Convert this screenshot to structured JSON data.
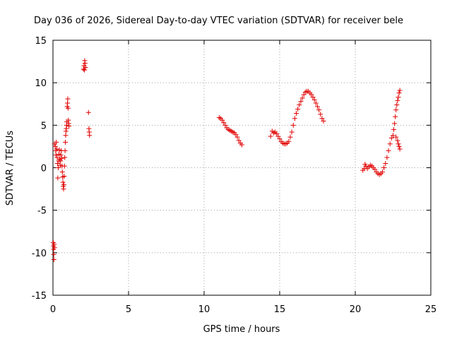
{
  "chart_data": {
    "type": "scatter",
    "title": "Day 036 of 2026, Sidereal Day-to-day VTEC variation (SDTVAR) for receiver bele",
    "xlabel": "GPS time / hours",
    "ylabel": "SDTVAR / TECUs",
    "xlim": [
      0,
      25
    ],
    "ylim": [
      -15,
      15
    ],
    "xticks": [
      0,
      5,
      10,
      15,
      20,
      25
    ],
    "yticks": [
      -15,
      -10,
      -5,
      0,
      5,
      10,
      15
    ],
    "grid": true,
    "marker": "+",
    "color": "#e00000",
    "series": [
      {
        "name": "SDTVAR",
        "points": [
          [
            0.02,
            -8.8
          ],
          [
            0.03,
            -9.2
          ],
          [
            0.04,
            -9.6
          ],
          [
            0.05,
            -10.2
          ],
          [
            0.06,
            -10.8
          ],
          [
            0.08,
            -9.0
          ],
          [
            0.1,
            -9.4
          ],
          [
            0.1,
            2.8
          ],
          [
            0.15,
            2.5
          ],
          [
            0.18,
            2.0
          ],
          [
            0.2,
            1.5
          ],
          [
            0.22,
            3.0
          ],
          [
            0.25,
            2.2
          ],
          [
            0.28,
            1.2
          ],
          [
            0.3,
            0.5
          ],
          [
            0.32,
            -1.2
          ],
          [
            0.35,
            0.0
          ],
          [
            0.38,
            0.8
          ],
          [
            0.4,
            1.6
          ],
          [
            0.42,
            2.1
          ],
          [
            0.45,
            1.0
          ],
          [
            0.48,
            0.3
          ],
          [
            0.5,
            0.8
          ],
          [
            0.52,
            1.5
          ],
          [
            0.55,
            2.0
          ],
          [
            0.58,
            1.1
          ],
          [
            0.6,
            0.2
          ],
          [
            0.62,
            -0.5
          ],
          [
            0.64,
            -1.1
          ],
          [
            0.66,
            -1.7
          ],
          [
            0.68,
            -2.2
          ],
          [
            0.7,
            -2.5
          ],
          [
            0.72,
            -2.0
          ],
          [
            0.74,
            -1.0
          ],
          [
            0.76,
            0.2
          ],
          [
            0.78,
            1.2
          ],
          [
            0.8,
            2.0
          ],
          [
            0.82,
            3.0
          ],
          [
            0.84,
            3.8
          ],
          [
            0.86,
            4.3
          ],
          [
            0.88,
            4.6
          ],
          [
            0.9,
            5.0
          ],
          [
            0.92,
            5.4
          ],
          [
            0.94,
            7.2
          ],
          [
            0.96,
            7.6
          ],
          [
            0.98,
            8.1
          ],
          [
            1.0,
            7.0
          ],
          [
            1.02,
            5.6
          ],
          [
            1.04,
            5.2
          ],
          [
            1.06,
            4.9
          ],
          [
            2.02,
            11.6
          ],
          [
            2.05,
            12.0
          ],
          [
            2.08,
            11.5
          ],
          [
            2.1,
            12.6
          ],
          [
            2.12,
            12.3
          ],
          [
            2.15,
            11.8
          ],
          [
            2.35,
            6.5
          ],
          [
            2.38,
            4.6
          ],
          [
            2.4,
            4.2
          ],
          [
            2.42,
            3.8
          ],
          [
            11.0,
            5.9
          ],
          [
            11.1,
            5.8
          ],
          [
            11.2,
            5.6
          ],
          [
            11.3,
            5.3
          ],
          [
            11.4,
            5.0
          ],
          [
            11.5,
            4.7
          ],
          [
            11.6,
            4.5
          ],
          [
            11.7,
            4.4
          ],
          [
            11.8,
            4.3
          ],
          [
            11.9,
            4.2
          ],
          [
            12.0,
            4.1
          ],
          [
            12.1,
            3.9
          ],
          [
            12.2,
            3.6
          ],
          [
            12.3,
            3.2
          ],
          [
            12.4,
            2.9
          ],
          [
            12.5,
            2.7
          ],
          [
            14.4,
            3.7
          ],
          [
            14.5,
            4.3
          ],
          [
            14.6,
            4.1
          ],
          [
            14.7,
            4.2
          ],
          [
            14.8,
            4.0
          ],
          [
            14.9,
            3.7
          ],
          [
            15.0,
            3.4
          ],
          [
            15.1,
            3.1
          ],
          [
            15.2,
            2.9
          ],
          [
            15.3,
            2.8
          ],
          [
            15.4,
            2.8
          ],
          [
            15.5,
            2.9
          ],
          [
            15.6,
            3.1
          ],
          [
            15.7,
            3.6
          ],
          [
            15.8,
            4.2
          ],
          [
            15.9,
            5.0
          ],
          [
            16.0,
            5.8
          ],
          [
            16.1,
            6.4
          ],
          [
            16.2,
            6.9
          ],
          [
            16.3,
            7.4
          ],
          [
            16.4,
            7.8
          ],
          [
            16.5,
            8.2
          ],
          [
            16.6,
            8.6
          ],
          [
            16.7,
            8.9
          ],
          [
            16.8,
            9.0
          ],
          [
            16.9,
            9.0
          ],
          [
            17.0,
            8.8
          ],
          [
            17.1,
            8.6
          ],
          [
            17.2,
            8.3
          ],
          [
            17.3,
            8.0
          ],
          [
            17.4,
            7.6
          ],
          [
            17.5,
            7.2
          ],
          [
            17.6,
            6.8
          ],
          [
            17.7,
            6.3
          ],
          [
            17.8,
            5.8
          ],
          [
            17.9,
            5.5
          ],
          [
            20.5,
            -0.3
          ],
          [
            20.6,
            -0.1
          ],
          [
            20.65,
            0.4
          ],
          [
            20.7,
            0.2
          ],
          [
            20.8,
            -0.1
          ],
          [
            20.9,
            0.1
          ],
          [
            21.0,
            0.3
          ],
          [
            21.1,
            0.2
          ],
          [
            21.2,
            0.0
          ],
          [
            21.3,
            -0.2
          ],
          [
            21.4,
            -0.5
          ],
          [
            21.5,
            -0.7
          ],
          [
            21.6,
            -0.8
          ],
          [
            21.7,
            -0.7
          ],
          [
            21.8,
            -0.5
          ],
          [
            21.9,
            0.0
          ],
          [
            22.0,
            0.5
          ],
          [
            22.1,
            1.2
          ],
          [
            22.2,
            2.0
          ],
          [
            22.3,
            2.8
          ],
          [
            22.4,
            3.5
          ],
          [
            22.5,
            3.8
          ],
          [
            22.55,
            4.5
          ],
          [
            22.6,
            5.2
          ],
          [
            22.65,
            6.0
          ],
          [
            22.7,
            6.8
          ],
          [
            22.75,
            7.4
          ],
          [
            22.8,
            7.9
          ],
          [
            22.85,
            8.3
          ],
          [
            22.9,
            8.8
          ],
          [
            22.95,
            9.1
          ],
          [
            22.7,
            3.6
          ],
          [
            22.8,
            3.2
          ],
          [
            22.85,
            2.8
          ],
          [
            22.9,
            2.5
          ],
          [
            22.95,
            2.2
          ]
        ]
      }
    ]
  }
}
